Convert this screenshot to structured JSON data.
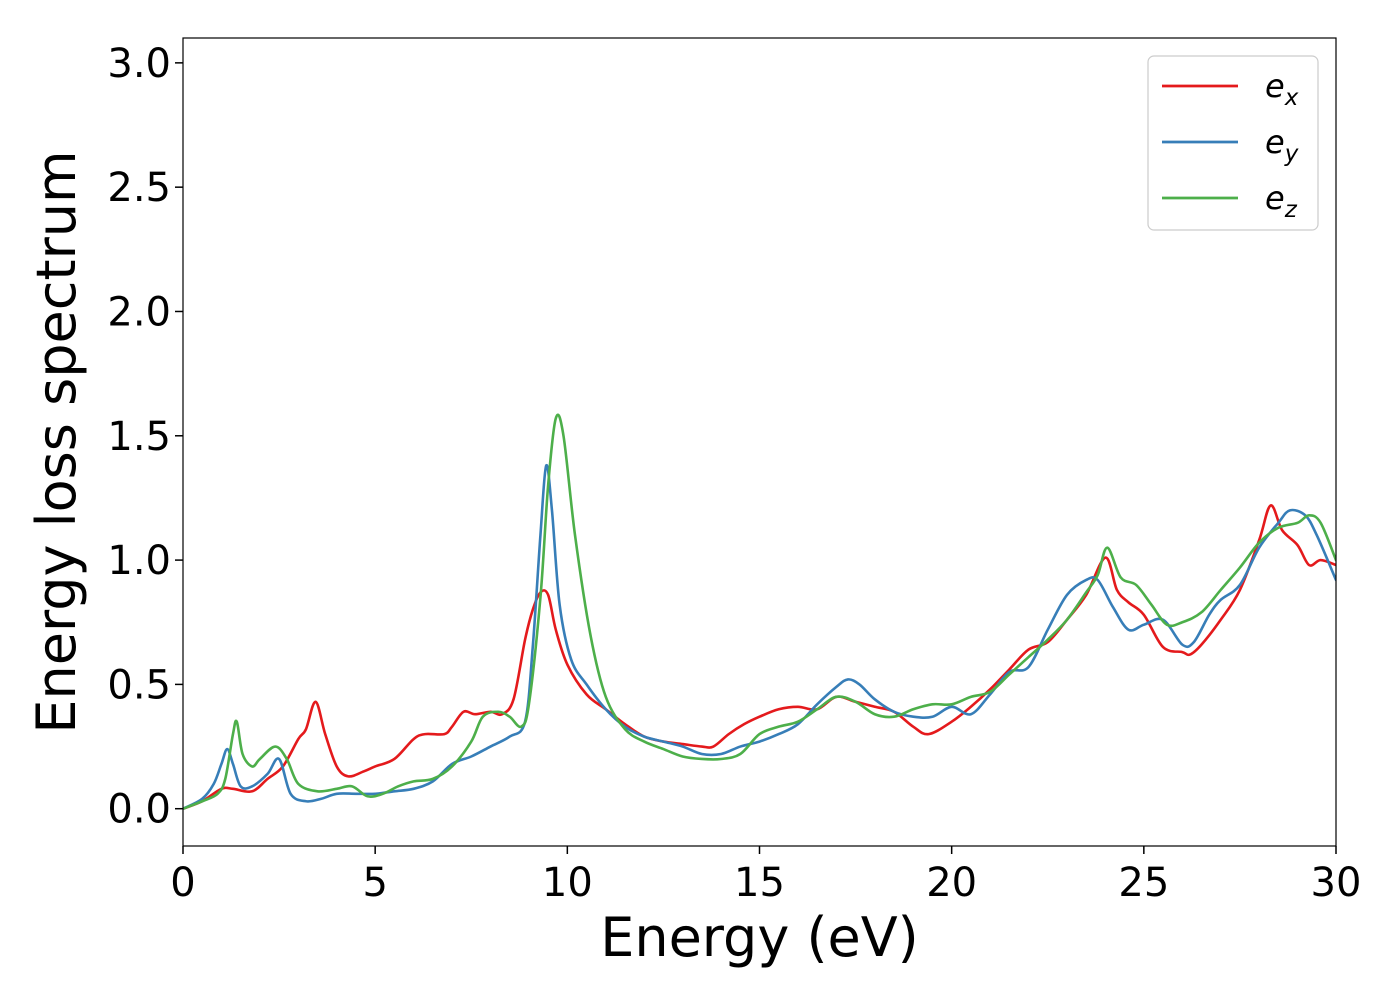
{
  "chart_data": {
    "type": "line",
    "title": "",
    "xlabel": "Energy (eV)",
    "ylabel": "Energy loss spectrum",
    "xlim": [
      0,
      30
    ],
    "ylim": [
      -0.15,
      3.1
    ],
    "xticks": [
      0,
      5,
      10,
      15,
      20,
      25,
      30
    ],
    "xtick_labels": [
      "0",
      "5",
      "10",
      "15",
      "20",
      "25",
      "30"
    ],
    "yticks": [
      0.0,
      0.5,
      1.0,
      1.5,
      2.0,
      2.5,
      3.0
    ],
    "ytick_labels": [
      "0.0",
      "0.5",
      "1.0",
      "1.5",
      "2.0",
      "2.5",
      "3.0"
    ],
    "grid": false,
    "legend_position": "top-right",
    "series": [
      {
        "name": "e_x",
        "label_base": "e",
        "label_sub": "x",
        "color": "#e41a1c",
        "x": [
          0,
          0.5,
          1.0,
          1.3,
          1.8,
          2.2,
          2.6,
          3.0,
          3.2,
          3.45,
          3.7,
          4.0,
          4.3,
          4.7,
          5.0,
          5.5,
          6.0,
          6.3,
          6.8,
          7.0,
          7.3,
          7.6,
          8.0,
          8.3,
          8.6,
          8.9,
          9.1,
          9.3,
          9.5,
          9.7,
          10.0,
          10.5,
          11.0,
          11.5,
          12.0,
          12.5,
          13.0,
          13.5,
          13.8,
          14.2,
          14.6,
          15.0,
          15.5,
          16.0,
          16.5,
          17.0,
          17.5,
          18.0,
          18.5,
          19.0,
          19.4,
          20.0,
          20.5,
          21.0,
          21.5,
          22.0,
          22.5,
          23.0,
          23.5,
          24.0,
          24.3,
          24.6,
          25.0,
          25.5,
          26.0,
          26.2,
          26.5,
          27.0,
          27.5,
          28.0,
          28.3,
          28.6,
          29.0,
          29.3,
          29.6,
          30.0
        ],
        "y": [
          0.0,
          0.03,
          0.08,
          0.08,
          0.07,
          0.12,
          0.17,
          0.28,
          0.32,
          0.43,
          0.3,
          0.17,
          0.13,
          0.15,
          0.17,
          0.2,
          0.28,
          0.3,
          0.3,
          0.33,
          0.39,
          0.38,
          0.39,
          0.38,
          0.44,
          0.68,
          0.8,
          0.87,
          0.86,
          0.72,
          0.58,
          0.46,
          0.4,
          0.34,
          0.29,
          0.27,
          0.26,
          0.25,
          0.25,
          0.3,
          0.34,
          0.37,
          0.4,
          0.41,
          0.4,
          0.45,
          0.43,
          0.41,
          0.39,
          0.33,
          0.3,
          0.35,
          0.41,
          0.48,
          0.56,
          0.64,
          0.67,
          0.76,
          0.86,
          1.01,
          0.88,
          0.83,
          0.78,
          0.65,
          0.63,
          0.62,
          0.66,
          0.76,
          0.88,
          1.08,
          1.22,
          1.12,
          1.06,
          0.98,
          1.0,
          0.98
        ]
      },
      {
        "name": "e_y",
        "label_base": "e",
        "label_sub": "y",
        "color": "#377eb8",
        "x": [
          0,
          0.5,
          0.8,
          1.0,
          1.15,
          1.3,
          1.5,
          1.8,
          2.2,
          2.5,
          2.8,
          3.2,
          3.6,
          4.0,
          4.5,
          5.0,
          5.5,
          6.0,
          6.5,
          7.0,
          7.5,
          8.0,
          8.5,
          8.9,
          9.1,
          9.3,
          9.45,
          9.6,
          9.8,
          10.1,
          10.5,
          11.0,
          11.5,
          12.0,
          12.5,
          13.0,
          13.5,
          14.0,
          14.5,
          15.0,
          15.5,
          16.0,
          16.5,
          17.0,
          17.3,
          17.6,
          18.0,
          18.5,
          19.0,
          19.5,
          20.0,
          20.5,
          21.0,
          21.5,
          22.0,
          22.5,
          23.0,
          23.5,
          23.8,
          24.2,
          24.6,
          25.0,
          25.5,
          26.0,
          26.3,
          26.7,
          27.0,
          27.5,
          28.0,
          28.5,
          28.8,
          29.2,
          29.5,
          30.0
        ],
        "y": [
          0.0,
          0.04,
          0.1,
          0.18,
          0.24,
          0.18,
          0.09,
          0.09,
          0.14,
          0.2,
          0.06,
          0.03,
          0.04,
          0.06,
          0.06,
          0.06,
          0.07,
          0.08,
          0.11,
          0.18,
          0.21,
          0.25,
          0.29,
          0.35,
          0.65,
          1.1,
          1.38,
          1.2,
          0.82,
          0.6,
          0.5,
          0.4,
          0.33,
          0.29,
          0.27,
          0.25,
          0.22,
          0.22,
          0.25,
          0.27,
          0.3,
          0.34,
          0.42,
          0.49,
          0.52,
          0.5,
          0.44,
          0.39,
          0.37,
          0.37,
          0.41,
          0.38,
          0.46,
          0.55,
          0.57,
          0.72,
          0.86,
          0.92,
          0.92,
          0.81,
          0.72,
          0.74,
          0.76,
          0.66,
          0.67,
          0.78,
          0.84,
          0.9,
          1.05,
          1.15,
          1.2,
          1.18,
          1.1,
          0.92
        ]
      },
      {
        "name": "e_z",
        "label_base": "e",
        "label_sub": "z",
        "color": "#4daf4a",
        "x": [
          0,
          0.5,
          0.9,
          1.1,
          1.3,
          1.4,
          1.55,
          1.8,
          2.0,
          2.4,
          2.7,
          3.0,
          3.5,
          4.0,
          4.4,
          4.8,
          5.2,
          5.6,
          6.0,
          6.5,
          7.0,
          7.5,
          7.8,
          8.2,
          8.5,
          8.8,
          9.0,
          9.3,
          9.5,
          9.7,
          9.9,
          10.2,
          10.6,
          11.0,
          11.5,
          12.0,
          12.5,
          13.0,
          13.5,
          14.0,
          14.5,
          15.0,
          15.5,
          16.0,
          16.5,
          17.0,
          17.5,
          18.0,
          18.5,
          19.0,
          19.5,
          20.0,
          20.5,
          21.0,
          21.5,
          22.0,
          22.5,
          23.0,
          23.5,
          23.8,
          24.05,
          24.4,
          24.8,
          25.2,
          25.6,
          26.0,
          26.5,
          27.0,
          27.5,
          28.0,
          28.5,
          29.0,
          29.3,
          29.6,
          30.0
        ],
        "y": [
          0.0,
          0.03,
          0.06,
          0.12,
          0.3,
          0.35,
          0.22,
          0.17,
          0.2,
          0.25,
          0.2,
          0.1,
          0.07,
          0.08,
          0.09,
          0.05,
          0.06,
          0.09,
          0.11,
          0.12,
          0.17,
          0.27,
          0.37,
          0.39,
          0.37,
          0.33,
          0.42,
          0.85,
          1.3,
          1.57,
          1.5,
          1.1,
          0.7,
          0.45,
          0.32,
          0.27,
          0.24,
          0.21,
          0.2,
          0.2,
          0.22,
          0.3,
          0.33,
          0.35,
          0.4,
          0.45,
          0.43,
          0.38,
          0.37,
          0.4,
          0.42,
          0.42,
          0.45,
          0.47,
          0.54,
          0.61,
          0.68,
          0.76,
          0.87,
          0.94,
          1.05,
          0.93,
          0.9,
          0.82,
          0.74,
          0.75,
          0.79,
          0.88,
          0.97,
          1.07,
          1.13,
          1.15,
          1.18,
          1.15,
          1.0
        ]
      }
    ]
  }
}
